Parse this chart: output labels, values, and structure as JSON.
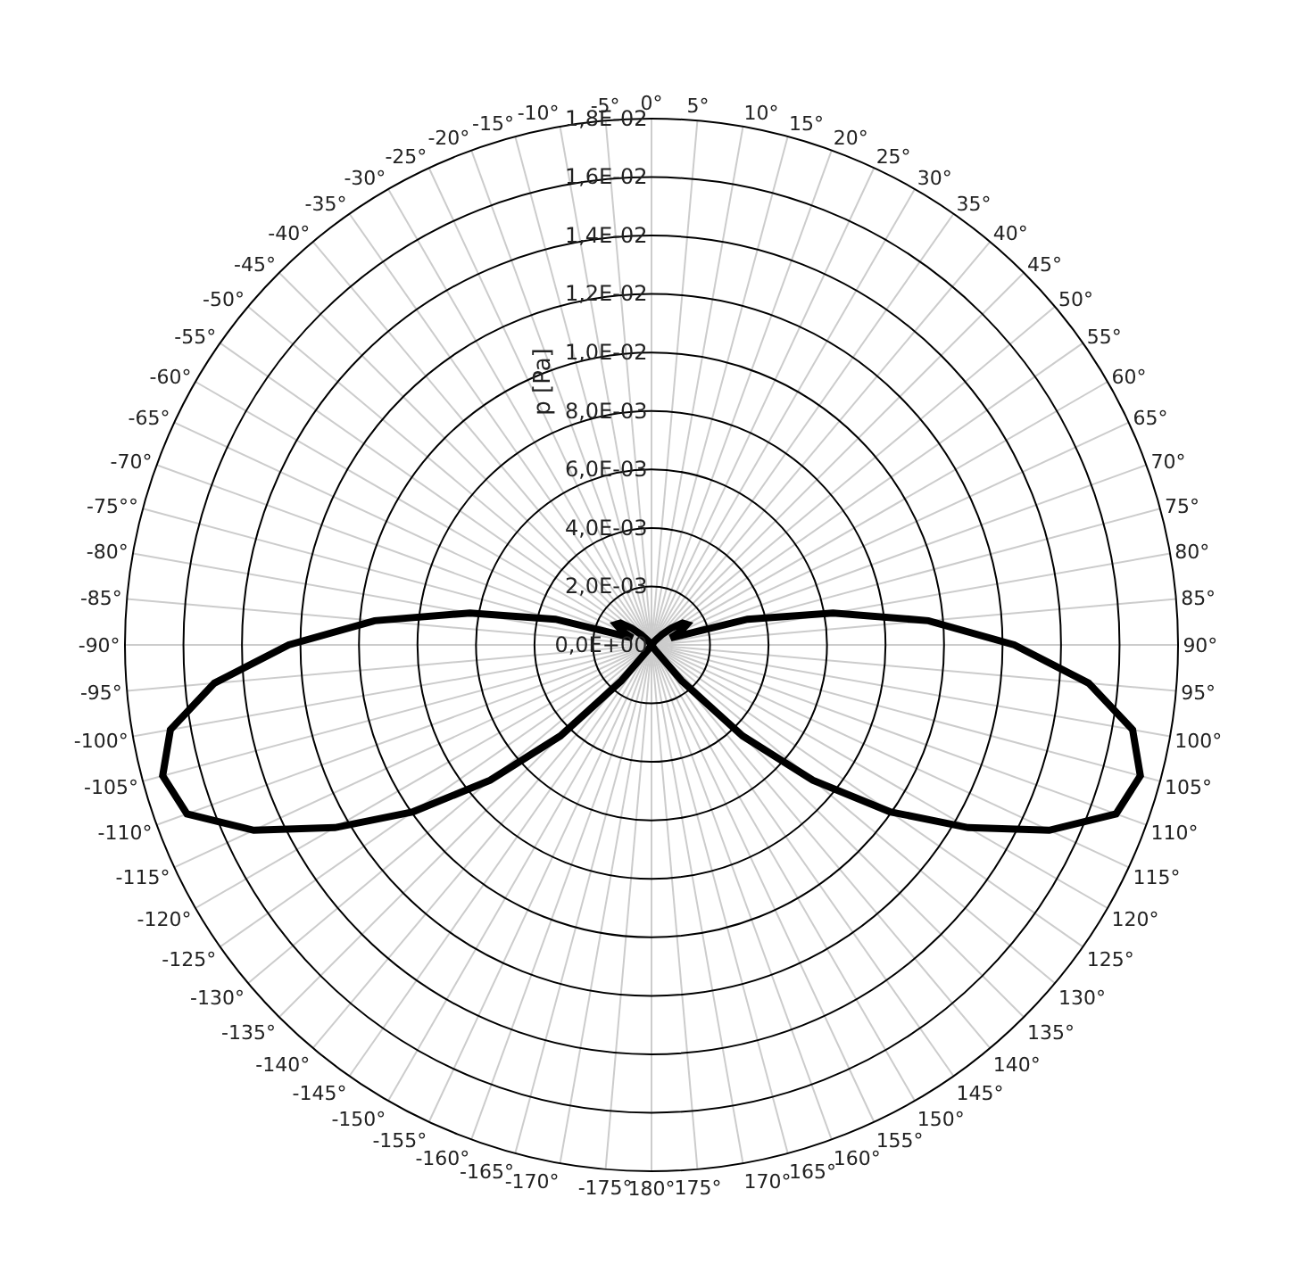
{
  "chart_data": {
    "type": "radar",
    "ylabel": "p [Pa]",
    "categories": [
      "0°",
      "5°",
      "10°",
      "15°",
      "20°",
      "25°",
      "30°",
      "35°",
      "40°",
      "45°",
      "50°",
      "55°",
      "60°",
      "65°",
      "70°",
      "75°",
      "80°",
      "85°",
      "90°",
      "95°",
      "100°",
      "105°",
      "110°",
      "115°",
      "120°",
      "125°",
      "130°",
      "135°",
      "140°",
      "145°",
      "150°",
      "155°",
      "160°",
      "165°",
      "170°",
      "175°",
      "180°",
      "-175°",
      "-170°",
      "-165°",
      "-160°",
      "-155°",
      "-150°",
      "-145°",
      "-140°",
      "-135°",
      "-130°",
      "-125°",
      "-120°",
      "-115°",
      "-110°",
      "-105°",
      "-100°",
      "-95°",
      "-90°",
      "-85°",
      "-80°",
      "-75°°",
      "-70°",
      "-65°",
      "-60°",
      "-55°",
      "-50°",
      "-45°",
      "-40°",
      "-35°",
      "-30°",
      "-25°",
      "-20°",
      "-15°",
      "-10°",
      "-5°"
    ],
    "series": [
      {
        "color": "#000000",
        "values": [
          0,
          0,
          0,
          0,
          0,
          0,
          0,
          0,
          0.0002,
          0.0005,
          0.0009,
          0.0013,
          0.0014,
          0.0011,
          0.0007,
          0.0034,
          0.0063,
          0.0095,
          0.0124,
          0.015,
          0.0167,
          0.0173,
          0.0169,
          0.015,
          0.0125,
          0.00995,
          0.0072,
          0.0044,
          0.0016,
          0.0002,
          0,
          0,
          0,
          0,
          0,
          0,
          0,
          0,
          0,
          0,
          0,
          0,
          0,
          0.0002,
          0.0016,
          0.0044,
          0.0072,
          0.00995,
          0.0125,
          0.015,
          0.0169,
          0.0173,
          0.0167,
          0.015,
          0.0124,
          0.0095,
          0.0063,
          0.0034,
          0.0007,
          0.0011,
          0.0014,
          0.0013,
          0.0009,
          0.0005,
          0.0002,
          0,
          0,
          0,
          0,
          0,
          0,
          0
        ]
      }
    ],
    "ylim": [
      0,
      0.018
    ],
    "yticks": [
      {
        "value": 0,
        "label": "0,0E+00"
      },
      {
        "value": 0.002,
        "label": "2,0E-03"
      },
      {
        "value": 0.004,
        "label": "4,0E-03"
      },
      {
        "value": 0.006,
        "label": "6,0E-03"
      },
      {
        "value": 0.008,
        "label": "8,0E-03"
      },
      {
        "value": 0.01,
        "label": "1,0E-02"
      },
      {
        "value": 0.012,
        "label": "1,2E-02"
      },
      {
        "value": 0.014,
        "label": "1,4E-02"
      },
      {
        "value": 0.016,
        "label": "1,6E-02"
      },
      {
        "value": 0.018,
        "label": "1,8E-02"
      }
    ],
    "grid": true,
    "marker": "none",
    "line_style": "solid"
  }
}
